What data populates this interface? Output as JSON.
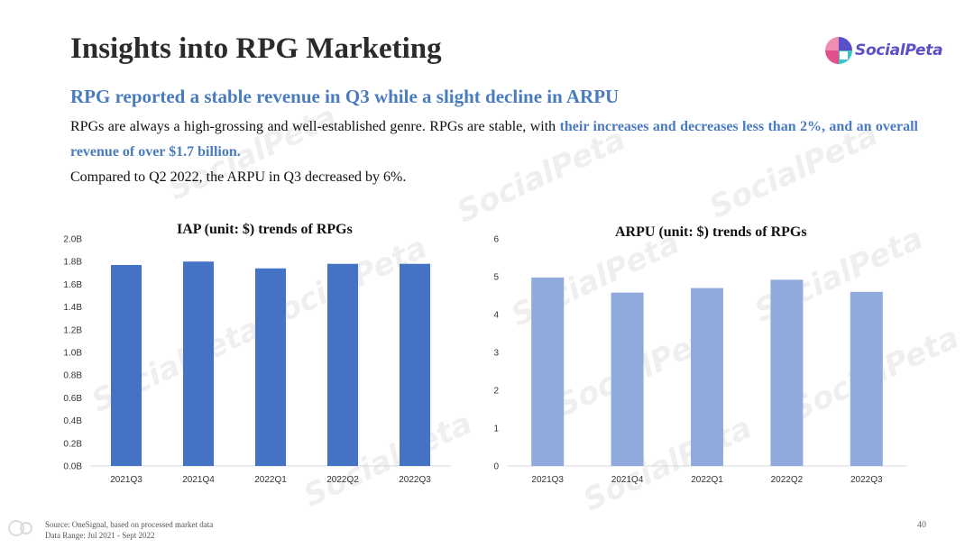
{
  "slide": {
    "title": "Insights into RPG Marketing",
    "brand": "SocialPeta",
    "subtitle": "RPG reported a stable revenue in Q3 while a slight decline in ARPU",
    "para1_normal": "RPGs are always a high-grossing and well-established genre. RPGs are stable, with ",
    "para1_highlight": "their increases and decreases less than 2%, and an overall revenue of over $1.7 billion.",
    "para2": "Compared to Q2 2022, the ARPU in Q3 decreased by 6%.",
    "footer_source": "Source: OneSignal, based on processed market data",
    "footer_range": "Data Range: Jul 2021 - Sept 2022",
    "page_number": "40",
    "watermark": "SocialPeta"
  },
  "colors": {
    "title": "#2b2b2b",
    "accent": "#4a7bbf",
    "iap_bar": "#4472c4",
    "arpu_bar": "#8faadc",
    "brand_purple": "#5a4ec9",
    "brand_pink": "#e0508a",
    "brand_teal": "#3ec4c4"
  },
  "chart_data": [
    {
      "type": "bar",
      "title": "IAP (unit: $) trends of RPGs",
      "categories": [
        "2021Q3",
        "2021Q4",
        "2022Q1",
        "2022Q2",
        "2022Q3"
      ],
      "values": [
        1.77,
        1.8,
        1.74,
        1.78,
        1.78
      ],
      "ylim": [
        0,
        2.0
      ],
      "yticks": [
        0,
        0.2,
        0.4,
        0.6,
        0.8,
        1.0,
        1.2,
        1.4,
        1.6,
        1.8,
        2.0
      ],
      "ytick_labels": [
        "0.0B",
        "0.2B",
        "0.4B",
        "0.6B",
        "0.8B",
        "1.0B",
        "1.2B",
        "1.4B",
        "1.6B",
        "1.8B",
        "2.0B"
      ],
      "grid": false,
      "color": "#4472c4"
    },
    {
      "type": "bar",
      "title": "ARPU (unit: $) trends of RPGs",
      "categories": [
        "2021Q3",
        "2021Q4",
        "2022Q1",
        "2022Q2",
        "2022Q3"
      ],
      "values": [
        4.98,
        4.58,
        4.7,
        4.92,
        4.6
      ],
      "ylim": [
        0,
        6
      ],
      "yticks": [
        0,
        1,
        2,
        3,
        4,
        5,
        6
      ],
      "ytick_labels": [
        "0",
        "1",
        "2",
        "3",
        "4",
        "5",
        "6"
      ],
      "grid": false,
      "color": "#8faadc"
    }
  ]
}
